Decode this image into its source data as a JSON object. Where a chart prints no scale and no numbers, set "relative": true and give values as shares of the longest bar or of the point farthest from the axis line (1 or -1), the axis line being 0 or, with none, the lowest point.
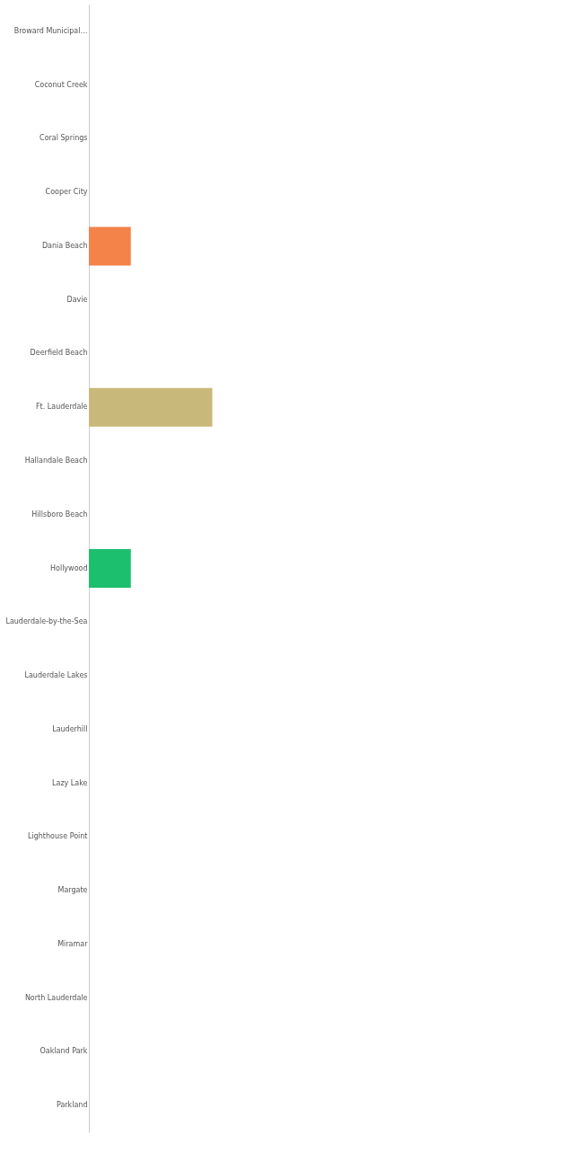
{
  "chart_data": {
    "type": "bar",
    "orientation": "horizontal",
    "relative": true,
    "categories": [
      "Broward Municipal…",
      "Coconut Creek",
      "Coral Springs",
      "Cooper City",
      "Dania Beach",
      "Davie",
      "Deerfield Beach",
      "Ft. Lauderdale",
      "Hallandale Beach",
      "Hillsboro Beach",
      "Hollywood",
      "Lauderdale-by-the-Sea",
      "Lauderdale Lakes",
      "Lauderhill",
      "Lazy Lake",
      "Lighthouse Point",
      "Margate",
      "Miramar",
      "North Lauderdale",
      "Oakland Park",
      "Parkland"
    ],
    "values": [
      0,
      0,
      0,
      0,
      0.34,
      0,
      0,
      1,
      0,
      0,
      0.34,
      0,
      0,
      0,
      0,
      0,
      0,
      0,
      0,
      0,
      0
    ],
    "colors": [
      "#f4834a",
      "#f4834a",
      "#f4834a",
      "#f4834a",
      "#f4834a",
      "#f4834a",
      "#f4834a",
      "#c8b97a",
      "#1cbf6e",
      "#1cbf6e",
      "#1cbf6e",
      "#1cbf6e",
      "#1cbf6e",
      "#1cbf6e",
      "#1cbf6e",
      "#1cbf6e",
      "#1cbf6e",
      "#1cbf6e",
      "#1cbf6e",
      "#1cbf6e",
      "#1cbf6e"
    ]
  }
}
